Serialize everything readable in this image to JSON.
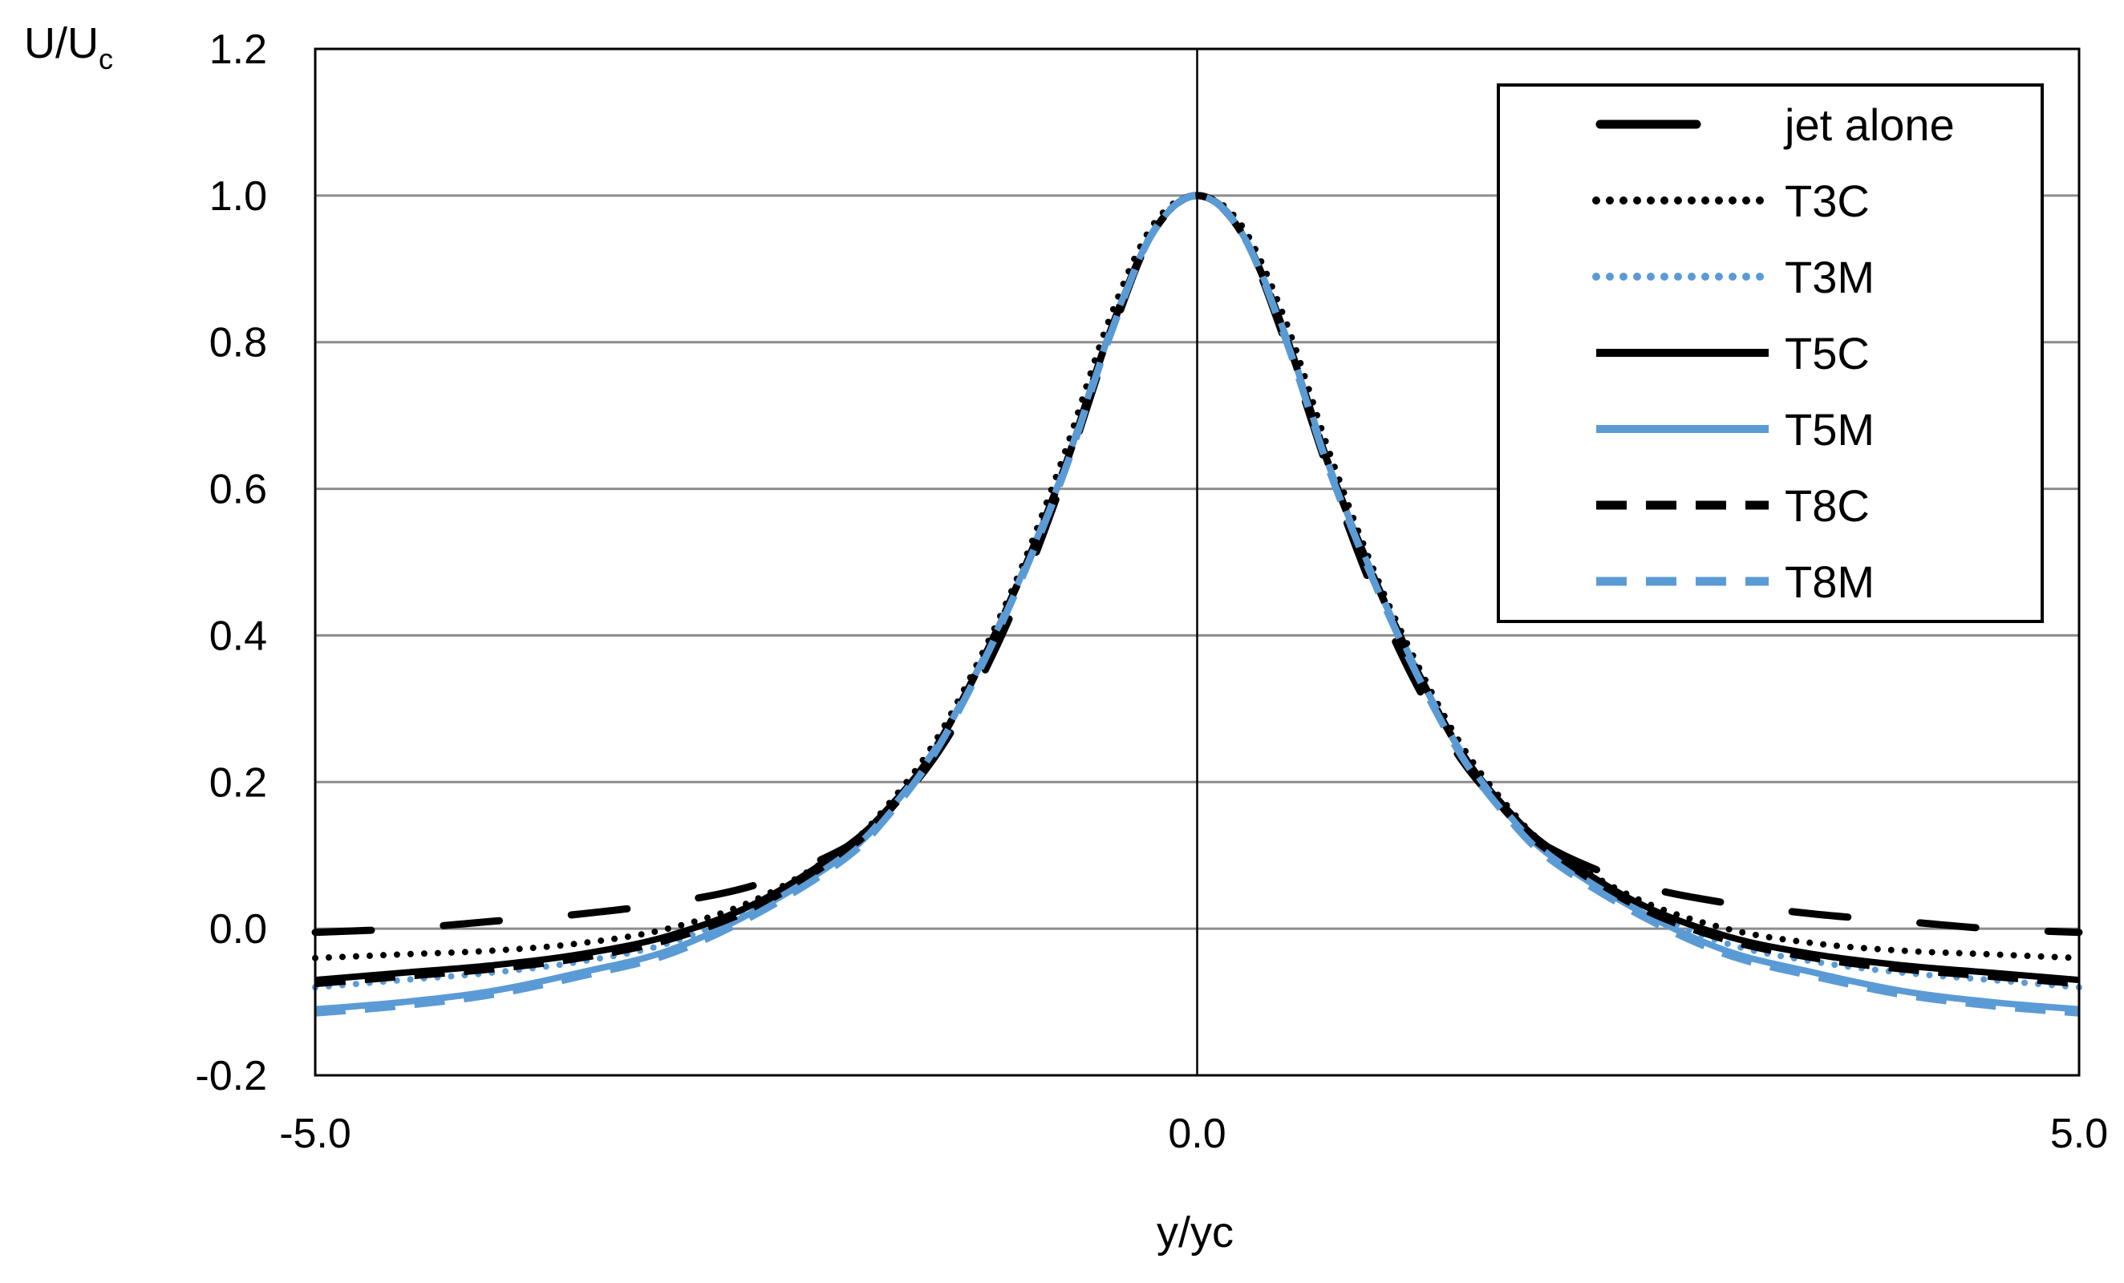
{
  "chart_data": {
    "type": "line",
    "xlabel": "y/yc",
    "ylabel": {
      "main": "U/U",
      "sub": "c"
    },
    "xlim": [
      -5.0,
      5.0
    ],
    "ylim": [
      -0.2,
      1.2
    ],
    "xticks": [
      -5.0,
      0.0,
      5.0
    ],
    "xtick_labels": [
      "-5.0",
      "0.0",
      "5.0"
    ],
    "yticks": [
      -0.2,
      0.0,
      0.2,
      0.4,
      0.6,
      0.8,
      1.0,
      1.2
    ],
    "ytick_labels": [
      "-0.2",
      "0.0",
      "0.2",
      "0.4",
      "0.6",
      "0.8",
      "1.0",
      "1.2"
    ],
    "grid": "horizontal",
    "legend_position": "top-right",
    "x": [
      -5.0,
      -4.5,
      -4.0,
      -3.5,
      -3.0,
      -2.5,
      -2.0,
      -1.75,
      -1.5,
      -1.25,
      -1.0,
      -0.75,
      -0.5,
      -0.25,
      0.0,
      0.25,
      0.5,
      0.75,
      1.0,
      1.25,
      1.5,
      1.75,
      2.0,
      2.5,
      3.0,
      3.5,
      4.0,
      4.5,
      5.0
    ],
    "series": [
      {
        "name": "jet alone",
        "color": "#000000",
        "style": "longdash",
        "values": [
          -0.005,
          0.0,
          0.01,
          0.02,
          0.035,
          0.06,
          0.11,
          0.16,
          0.23,
          0.33,
          0.46,
          0.62,
          0.8,
          0.95,
          1.0,
          0.95,
          0.8,
          0.62,
          0.46,
          0.33,
          0.23,
          0.16,
          0.11,
          0.06,
          0.035,
          0.02,
          0.01,
          0.0,
          -0.005
        ]
      },
      {
        "name": "T3C",
        "color": "#000000",
        "style": "dotted",
        "values": [
          -0.04,
          -0.035,
          -0.03,
          -0.02,
          0.0,
          0.04,
          0.11,
          0.17,
          0.25,
          0.36,
          0.49,
          0.65,
          0.83,
          0.96,
          1.0,
          0.96,
          0.83,
          0.65,
          0.49,
          0.36,
          0.25,
          0.17,
          0.11,
          0.04,
          0.0,
          -0.02,
          -0.03,
          -0.035,
          -0.04
        ]
      },
      {
        "name": "T3M",
        "color": "#5b9bd5",
        "style": "dotted",
        "values": [
          -0.08,
          -0.07,
          -0.06,
          -0.045,
          -0.02,
          0.03,
          0.1,
          0.16,
          0.24,
          0.35,
          0.48,
          0.63,
          0.81,
          0.95,
          1.0,
          0.95,
          0.81,
          0.63,
          0.48,
          0.35,
          0.24,
          0.16,
          0.1,
          0.03,
          -0.02,
          -0.045,
          -0.06,
          -0.07,
          -0.08
        ]
      },
      {
        "name": "T5C",
        "color": "#000000",
        "style": "solid",
        "values": [
          -0.07,
          -0.06,
          -0.05,
          -0.035,
          -0.01,
          0.035,
          0.11,
          0.165,
          0.24,
          0.35,
          0.48,
          0.63,
          0.81,
          0.95,
          1.0,
          0.95,
          0.81,
          0.63,
          0.48,
          0.35,
          0.24,
          0.165,
          0.11,
          0.035,
          -0.01,
          -0.035,
          -0.05,
          -0.06,
          -0.07
        ]
      },
      {
        "name": "T5M",
        "color": "#5b9bd5",
        "style": "solid",
        "values": [
          -0.11,
          -0.1,
          -0.085,
          -0.06,
          -0.03,
          0.025,
          0.1,
          0.16,
          0.24,
          0.35,
          0.48,
          0.63,
          0.81,
          0.95,
          1.0,
          0.95,
          0.81,
          0.63,
          0.48,
          0.35,
          0.24,
          0.16,
          0.1,
          0.025,
          -0.03,
          -0.06,
          -0.085,
          -0.1,
          -0.11
        ]
      },
      {
        "name": "T8C",
        "color": "#000000",
        "style": "dashed",
        "values": [
          -0.075,
          -0.065,
          -0.055,
          -0.04,
          -0.015,
          0.03,
          0.105,
          0.16,
          0.24,
          0.35,
          0.48,
          0.63,
          0.81,
          0.95,
          1.0,
          0.95,
          0.81,
          0.63,
          0.48,
          0.35,
          0.24,
          0.16,
          0.105,
          0.03,
          -0.015,
          -0.04,
          -0.055,
          -0.065,
          -0.075
        ]
      },
      {
        "name": "T8M",
        "color": "#5b9bd5",
        "style": "dashed",
        "values": [
          -0.115,
          -0.105,
          -0.09,
          -0.065,
          -0.035,
          0.02,
          0.095,
          0.155,
          0.235,
          0.345,
          0.475,
          0.625,
          0.805,
          0.95,
          1.0,
          0.95,
          0.805,
          0.625,
          0.475,
          0.345,
          0.235,
          0.155,
          0.095,
          0.02,
          -0.035,
          -0.065,
          -0.09,
          -0.105,
          -0.115
        ]
      }
    ]
  }
}
